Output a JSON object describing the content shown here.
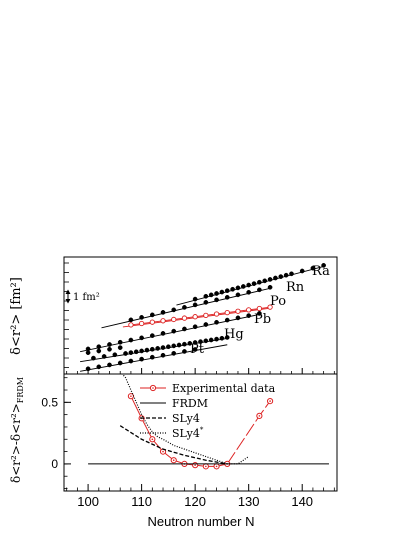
{
  "figure": {
    "xlabel": "Neutron number N",
    "x_ticks": [
      "100",
      "110",
      "120",
      "130",
      "140"
    ]
  },
  "chart_data": [
    {
      "type": "scatter",
      "panel": "upper",
      "ylabel": "δ<r²> [fm²]",
      "xlim": [
        95.5,
        146.5
      ],
      "scale_bar": "1 fm²",
      "note": "isotope chains vertically offset; y axis has no numeric tick labels",
      "series": [
        {
          "name": "Ra",
          "color": "#000000",
          "x": [
            120,
            122,
            123,
            124,
            125,
            126,
            127,
            128,
            129,
            130,
            131,
            132,
            133,
            134,
            135,
            136,
            137,
            138,
            140,
            142,
            144
          ],
          "fit_x": [
            118,
            144
          ],
          "fit_y": [
            2.55,
            4.3
          ]
        },
        {
          "name": "Rn",
          "color": "#000000",
          "x": [
            108,
            110,
            112,
            114,
            116,
            118,
            120,
            122,
            124,
            126,
            128,
            130,
            132,
            134
          ],
          "fit_x": [
            104,
            134
          ],
          "fit_y": [
            1.45,
            3.25
          ]
        },
        {
          "name": "Po",
          "color": "#dd2222",
          "hollow": true,
          "x": [
            108,
            110,
            112,
            114,
            116,
            118,
            120,
            122,
            124,
            126,
            128,
            130,
            132,
            134
          ],
          "fit_x": [
            108,
            134
          ],
          "fit_y": [
            1.45,
            2.3
          ]
        },
        {
          "name": "Pb",
          "color": "#000000",
          "x": [
            100,
            102,
            104,
            106,
            108,
            110,
            112,
            114,
            116,
            118,
            120,
            122,
            124,
            126,
            128,
            130,
            132
          ],
          "fit_x": [
            100,
            132
          ],
          "fit_y": [
            0.3,
            2.0
          ]
        },
        {
          "name": "Hg",
          "color": "#000000",
          "x": [
            100,
            101,
            102,
            103,
            104,
            105,
            106,
            107,
            108,
            109,
            110,
            111,
            112,
            113,
            114,
            115,
            116,
            117,
            118,
            119,
            120,
            121,
            122,
            123,
            124,
            125,
            126
          ],
          "fit_x": [
            100,
            126
          ],
          "fit_y": [
            -0.2,
            0.85
          ]
        },
        {
          "name": "Pt",
          "color": "#000000",
          "x": [
            100,
            102,
            104,
            106,
            108,
            110,
            112,
            114,
            116,
            118,
            120
          ],
          "fit_x": [
            100,
            126
          ],
          "fit_y": [
            -0.65,
            0.55
          ]
        }
      ]
    },
    {
      "type": "line",
      "panel": "lower",
      "ylabel": "δ<r²>-δ<r²>FRDM",
      "xlim": [
        95.5,
        146.5
      ],
      "ylim": [
        -0.22,
        0.73
      ],
      "y_ticks": [
        "0",
        "0.5"
      ],
      "legend_position": "top-right",
      "series": [
        {
          "name": "Experimental data",
          "color": "#dd2222",
          "x": [
            108,
            110,
            112,
            114,
            116,
            118,
            120,
            122,
            124,
            126,
            132,
            134
          ],
          "y": [
            0.55,
            0.37,
            0.2,
            0.1,
            0.03,
            0.0,
            -0.01,
            -0.02,
            -0.02,
            0.0,
            0.39,
            0.51
          ]
        },
        {
          "name": "FRDM",
          "color": "#000000",
          "x": [
            100,
            145
          ],
          "y": [
            0,
            0
          ]
        },
        {
          "name": "SLy4",
          "color": "#000000",
          "x": [
            106,
            110,
            114,
            118,
            122,
            126
          ],
          "y": [
            0.31,
            0.2,
            0.12,
            0.07,
            0.03,
            0.0
          ]
        },
        {
          "name": "SLy4*",
          "color": "#000000",
          "x": [
            106,
            107,
            108,
            109,
            110,
            111,
            112,
            113,
            114,
            116,
            118,
            120,
            122,
            124,
            126,
            128,
            129,
            130
          ],
          "y": [
            0.75,
            0.7,
            0.6,
            0.5,
            0.4,
            0.32,
            0.26,
            0.22,
            0.2,
            0.15,
            0.12,
            0.09,
            0.06,
            0.03,
            0.0,
            0.0,
            0.03,
            0.06
          ]
        }
      ]
    }
  ]
}
